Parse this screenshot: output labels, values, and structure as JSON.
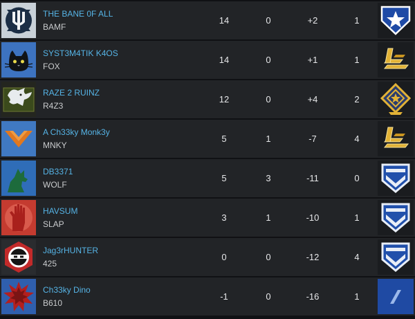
{
  "players": [
    {
      "gamertag": "THE BANE 0F ALL",
      "clan_tag": "BAMF",
      "kills": "14",
      "assists": "0",
      "spread": "+2",
      "deaths": "1",
      "emblem_icon": "trident-emblem-icon",
      "rank_icon": "star-shield-rank-icon"
    },
    {
      "gamertag": "SYST3M4TIK K4OS",
      "clan_tag": "FOX",
      "kills": "14",
      "assists": "0",
      "spread": "+1",
      "deaths": "1",
      "emblem_icon": "cat-emblem-icon",
      "rank_icon": "gold-bars-rank-icon"
    },
    {
      "gamertag": "RAZE 2 RUINZ",
      "clan_tag": "R4Z3",
      "kills": "12",
      "assists": "0",
      "spread": "+4",
      "deaths": "2",
      "emblem_icon": "bull-emblem-icon",
      "rank_icon": "gold-diamond-rank-icon"
    },
    {
      "gamertag": "A Ch33ky Monk3y",
      "clan_tag": "MNKY",
      "kills": "5",
      "assists": "1",
      "spread": "-7",
      "deaths": "4",
      "emblem_icon": "chevron-emblem-icon",
      "rank_icon": "gold-bars-rank-icon"
    },
    {
      "gamertag": "DB3371",
      "clan_tag": "WOLF",
      "kills": "5",
      "assists": "3",
      "spread": "-11",
      "deaths": "0",
      "emblem_icon": "wolf-emblem-icon",
      "rank_icon": "chevron-shield-rank-icon"
    },
    {
      "gamertag": "HAVSUM",
      "clan_tag": "SLAP",
      "kills": "3",
      "assists": "1",
      "spread": "-10",
      "deaths": "1",
      "emblem_icon": "hand-emblem-icon",
      "rank_icon": "chevron-shield-rank-icon"
    },
    {
      "gamertag": "Jag3rHUNTER",
      "clan_tag": "425",
      "kills": "0",
      "assists": "0",
      "spread": "-12",
      "deaths": "4",
      "emblem_icon": "ninja-emblem-icon",
      "rank_icon": "chevron-shield-rank-icon"
    },
    {
      "gamertag": "Ch33ky Dino",
      "clan_tag": "B610",
      "kills": "-1",
      "assists": "0",
      "spread": "-16",
      "deaths": "1",
      "emblem_icon": "splat-emblem-icon",
      "rank_icon": "slash-rank-icon"
    }
  ],
  "colors": {
    "row_background": "#222427",
    "gamertag": "#56b4e6",
    "clan_tag": "#c9cbcd",
    "stat_text": "#e6e7e9",
    "rank_blue": "#1e4aa6",
    "rank_gold": "#e2b236"
  }
}
